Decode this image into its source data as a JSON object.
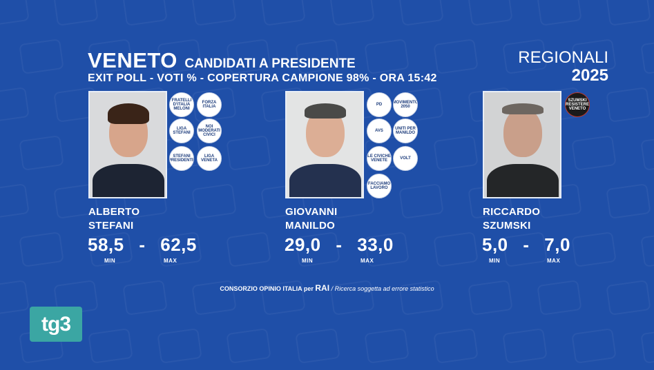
{
  "title": "VENETO",
  "title_suffix": "CANDIDATI A PRESIDENTE",
  "subtitle": "EXIT POLL - VOTI % - COPERTURA CAMPIONE 98% - ORA 15:42",
  "election": {
    "line1": "REGIONALI",
    "line2": "2025"
  },
  "labels": {
    "min": "MIN",
    "max": "MAX",
    "dash": "-"
  },
  "candidates": [
    {
      "first": "ALBERTO",
      "last": "STEFANI",
      "min": "58,5",
      "max": "62,5",
      "logos": [
        "FRATELLI D'ITALIA MELONI",
        "FORZA ITALIA",
        "LIGA STEFANI",
        "NOI MODERATI CIVICI",
        "STEFANI PRESIDENTE",
        "LIGA VENETA"
      ]
    },
    {
      "first": "GIOVANNI",
      "last": "MANILDO",
      "min": "29,0",
      "max": "33,0",
      "logos": [
        "PD",
        "MOVIMENTO 2050",
        "AVS",
        "UNITI PER MANILDO",
        "LE CIVICHE VENETE",
        "VOLT",
        "FACCIAMO LAVORO"
      ]
    },
    {
      "first": "RICCARDO",
      "last": "SZUMSKI",
      "min": "5,0",
      "max": "7,0",
      "logos": [
        "SZUMSKI RESISTERE VENETO"
      ]
    }
  ],
  "footer": {
    "source": "CONSORZIO OPINIO ITALIA per",
    "rai": "RAI",
    "note": "/ Ricerca soggetta ad errore statistico"
  },
  "channel_logo": "tg3",
  "colors": {
    "background": "#1f4fa8",
    "tg3": "#3ba6a3"
  }
}
